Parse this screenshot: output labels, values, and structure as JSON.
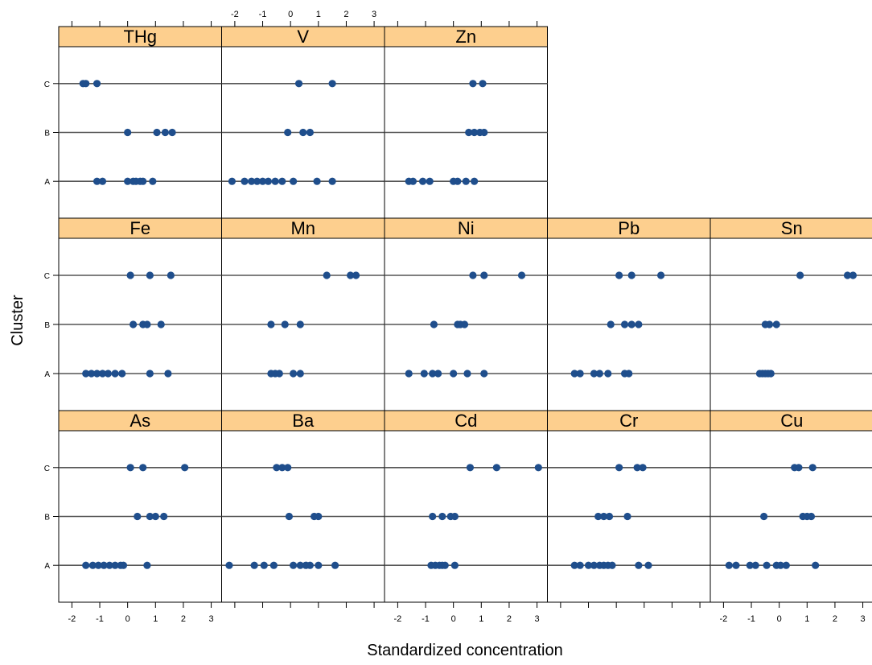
{
  "chart_data": {
    "type": "scatter",
    "xlabel": "Standardized concentration",
    "ylabel": "Cluster",
    "categories": [
      "A",
      "B",
      "C"
    ],
    "xlim": [
      -2.3,
      3.2
    ],
    "x_ticks": [
      "-2",
      "-1",
      "0",
      "1",
      "2",
      "3"
    ],
    "grid": "horizontal reference lines per cluster",
    "point_color": "#1f4e8c",
    "strip_color": "#fdcf8e",
    "panels": [
      {
        "name": "THg",
        "row": 0,
        "col": 0,
        "points": {
          "A": [
            -1.1,
            -0.9,
            0.0,
            0.2,
            0.3,
            0.45,
            0.55,
            0.9
          ],
          "B": [
            0.0,
            1.05,
            1.35,
            1.6
          ],
          "C": [
            -1.6,
            -1.5,
            -1.1
          ]
        }
      },
      {
        "name": "V",
        "row": 0,
        "col": 1,
        "points": {
          "A": [
            -2.1,
            -1.65,
            -1.4,
            -1.2,
            -1.0,
            -0.8,
            -0.55,
            -0.3,
            0.1,
            0.95,
            1.5
          ],
          "B": [
            -0.1,
            0.45,
            0.7
          ],
          "C": [
            0.3,
            1.5
          ]
        }
      },
      {
        "name": "Zn",
        "row": 0,
        "col": 2,
        "points": {
          "A": [
            -1.6,
            -1.45,
            -1.1,
            -0.85,
            0.0,
            0.15,
            0.45,
            0.75
          ],
          "B": [
            0.55,
            0.75,
            0.95,
            1.1
          ],
          "C": [
            0.7,
            1.05
          ]
        }
      },
      {
        "name": "Fe",
        "row": 1,
        "col": 0,
        "points": {
          "A": [
            -1.5,
            -1.3,
            -1.1,
            -0.9,
            -0.7,
            -0.45,
            -0.2,
            0.8,
            1.45
          ],
          "B": [
            0.2,
            0.55,
            0.7,
            1.2
          ],
          "C": [
            0.1,
            0.8,
            1.55
          ]
        }
      },
      {
        "name": "Mn",
        "row": 1,
        "col": 1,
        "points": {
          "A": [
            -0.7,
            -0.55,
            -0.4,
            0.1,
            0.35
          ],
          "B": [
            -0.7,
            -0.2,
            0.35
          ],
          "C": [
            1.3,
            2.15,
            2.35
          ]
        }
      },
      {
        "name": "Ni",
        "row": 1,
        "col": 2,
        "points": {
          "A": [
            -1.6,
            -1.05,
            -0.75,
            -0.55,
            0.0,
            0.5,
            1.1
          ],
          "B": [
            -0.7,
            0.15,
            0.25,
            0.4
          ],
          "C": [
            0.7,
            1.1,
            2.45
          ]
        }
      },
      {
        "name": "Pb",
        "row": 1,
        "col": 3,
        "points": {
          "A": [
            -1.5,
            -1.3,
            -0.8,
            -0.6,
            -0.3,
            0.3,
            0.45
          ],
          "B": [
            -0.2,
            0.3,
            0.55,
            0.8
          ],
          "C": [
            0.1,
            0.55,
            1.6
          ]
        }
      },
      {
        "name": "Sn",
        "row": 1,
        "col": 4,
        "points": {
          "A": [
            -0.7,
            -0.6,
            -0.5,
            -0.4,
            -0.3
          ],
          "B": [
            -0.5,
            -0.35,
            -0.1
          ],
          "C": [
            0.75,
            2.45,
            2.65
          ]
        }
      },
      {
        "name": "As",
        "row": 2,
        "col": 0,
        "points": {
          "A": [
            -1.5,
            -1.25,
            -1.05,
            -0.85,
            -0.65,
            -0.45,
            -0.25,
            -0.15,
            0.7
          ],
          "B": [
            0.35,
            0.8,
            1.0,
            1.3
          ],
          "C": [
            0.1,
            0.55,
            2.05
          ]
        }
      },
      {
        "name": "Ba",
        "row": 2,
        "col": 1,
        "points": {
          "A": [
            -2.2,
            -1.3,
            -0.95,
            -0.6,
            0.1,
            0.35,
            0.55,
            0.7,
            1.0,
            1.6
          ],
          "B": [
            -0.05,
            0.85,
            1.0
          ],
          "C": [
            -0.5,
            -0.3,
            -0.1
          ]
        }
      },
      {
        "name": "Cd",
        "row": 2,
        "col": 2,
        "points": {
          "A": [
            -0.8,
            -0.65,
            -0.5,
            -0.4,
            -0.3,
            0.05
          ],
          "B": [
            -0.75,
            -0.4,
            -0.1,
            0.05
          ],
          "C": [
            0.6,
            1.55,
            3.05
          ]
        }
      },
      {
        "name": "Cr",
        "row": 2,
        "col": 3,
        "points": {
          "A": [
            -1.5,
            -1.3,
            -1.0,
            -0.8,
            -0.6,
            -0.45,
            -0.3,
            -0.15,
            0.8,
            1.15
          ],
          "B": [
            -0.65,
            -0.45,
            -0.25,
            0.4
          ],
          "C": [
            0.1,
            0.75,
            0.95
          ]
        }
      },
      {
        "name": "Cu",
        "row": 2,
        "col": 4,
        "points": {
          "A": [
            -1.8,
            -1.55,
            -1.05,
            -0.85,
            -0.45,
            -0.1,
            0.05,
            0.25,
            1.3
          ],
          "B": [
            -0.55,
            0.85,
            1.0,
            1.15
          ],
          "C": [
            0.55,
            0.7,
            1.2
          ]
        }
      }
    ]
  }
}
